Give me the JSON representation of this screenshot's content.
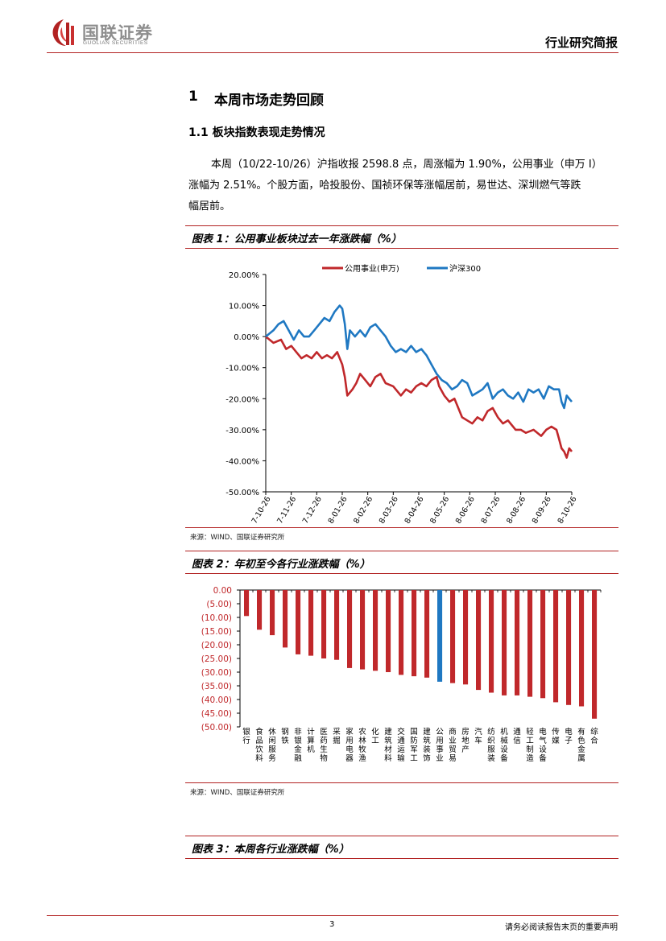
{
  "header": {
    "brand_cn": "国联证券",
    "brand_en": "GUOLIAN SECURITIES",
    "doc_type": "行业研究简报"
  },
  "section": {
    "number": "1",
    "title": "本周市场走势回顾",
    "subsection": "1.1 板块指数表现走势情况",
    "paragraph_line1": "本周（10/22-10/26）沪指收报 2598.8 点，周涨幅为 1.90%，公用事业（申万 I）",
    "paragraph_line2": "涨幅为 2.51%。个股方面，哈投股份、国祯环保等涨幅居前，易世达、深圳燃气等跌",
    "paragraph_line3": "幅居前。"
  },
  "figure1": {
    "title": "图表 1：公用事业板块过去一年涨跌幅（%）",
    "source": "来源：WIND、国联证券研究所"
  },
  "figure2": {
    "title": "图表 2：年初至今各行业涨跌幅（%）",
    "source": "来源：WIND、国联证券研究所"
  },
  "figure3": {
    "title": "图表 3：本周各行业涨跌幅（%）"
  },
  "footer": {
    "page": "3",
    "disclaimer": "请务必阅读报告末页的重要声明"
  },
  "colors": {
    "red": "#c0282b",
    "blue": "#1f78c2",
    "brand_red": "#b22222"
  },
  "chart_data": [
    {
      "type": "line",
      "title": "公用事业板块过去一年涨跌幅（%）",
      "x_tick_labels": [
        "2017-10-26",
        "2017-11-26",
        "2017-12-26",
        "2018-01-26",
        "2018-02-26",
        "2018-03-26",
        "2018-04-26",
        "2018-05-26",
        "2018-06-26",
        "2018-07-26",
        "2018-08-26",
        "2018-09-26",
        "2018-10-26"
      ],
      "y_tick_labels": [
        "20.00%",
        "10.00%",
        "0.00%",
        "-10.00%",
        "-20.00%",
        "-30.00%",
        "-40.00%",
        "-50.00%"
      ],
      "ylim": [
        -50,
        20
      ],
      "x_months": [
        0,
        12
      ],
      "legend_position": "top",
      "series": [
        {
          "name": "公用事业(申万)",
          "color": "#c0282b",
          "x": [
            0,
            0.3,
            0.6,
            0.8,
            1.0,
            1.2,
            1.4,
            1.6,
            1.8,
            2.0,
            2.2,
            2.4,
            2.6,
            2.8,
            3.0,
            3.1,
            3.2,
            3.4,
            3.55,
            3.7,
            3.9,
            4.1,
            4.3,
            4.5,
            4.7,
            5.0,
            5.3,
            5.5,
            5.7,
            5.9,
            6.1,
            6.3,
            6.5,
            6.7,
            6.8,
            7.0,
            7.2,
            7.4,
            7.5,
            7.7,
            7.9,
            8.1,
            8.3,
            8.5,
            8.7,
            8.9,
            9.1,
            9.3,
            9.5,
            9.8,
            10.0,
            10.2,
            10.5,
            10.8,
            11.0,
            11.2,
            11.4,
            11.5,
            11.6,
            11.7,
            11.8,
            11.9,
            12.0
          ],
          "values": [
            0,
            -2,
            -1,
            -4,
            -3,
            -5,
            -7,
            -6,
            -7,
            -5,
            -7,
            -6,
            -7,
            -5,
            -9,
            -13,
            -19,
            -17,
            -15,
            -12,
            -14,
            -16,
            -13,
            -12,
            -15,
            -16,
            -19,
            -17,
            -18,
            -16,
            -15,
            -16,
            -14,
            -13,
            -16,
            -19,
            -21,
            -20,
            -22,
            -26,
            -27,
            -28,
            -26,
            -27,
            -24,
            -23,
            -26,
            -28,
            -27,
            -30,
            -30,
            -31,
            -30,
            -32,
            -30,
            -29,
            -30,
            -33,
            -36,
            -37,
            -39,
            -36,
            -37
          ]
        },
        {
          "name": "沪深300",
          "color": "#1f78c2",
          "x": [
            0,
            0.3,
            0.5,
            0.7,
            0.9,
            1.1,
            1.3,
            1.5,
            1.7,
            1.9,
            2.1,
            2.3,
            2.5,
            2.7,
            2.9,
            3.0,
            3.1,
            3.2,
            3.3,
            3.5,
            3.7,
            3.9,
            4.1,
            4.3,
            4.5,
            4.7,
            4.9,
            5.1,
            5.3,
            5.5,
            5.7,
            5.9,
            6.1,
            6.2,
            6.3,
            6.5,
            6.7,
            6.9,
            7.1,
            7.3,
            7.5,
            7.7,
            7.9,
            8.1,
            8.3,
            8.5,
            8.7,
            8.9,
            9.1,
            9.3,
            9.5,
            9.7,
            9.9,
            10.1,
            10.3,
            10.5,
            10.7,
            10.9,
            11.1,
            11.3,
            11.5,
            11.6,
            11.7,
            11.8,
            11.9,
            12.0
          ],
          "values": [
            0,
            2,
            4,
            5,
            2,
            -1,
            2,
            0,
            0,
            2,
            4,
            6,
            5,
            8,
            10,
            9,
            4,
            -4,
            2,
            0,
            2,
            0,
            3,
            4,
            2,
            0,
            -3,
            -5,
            -4,
            -5,
            -3,
            -5,
            -4,
            -5,
            -6,
            -9,
            -12,
            -14,
            -15,
            -17,
            -16,
            -14,
            -15,
            -19,
            -18,
            -17,
            -15,
            -20,
            -18,
            -17,
            -19,
            -20,
            -18,
            -21,
            -17,
            -18,
            -17,
            -20,
            -16,
            -17,
            -17,
            -21,
            -23,
            -19,
            -20,
            -21
          ]
        }
      ]
    },
    {
      "type": "bar",
      "title": "年初至今各行业涨跌幅（%）",
      "y_tick_labels": [
        "0.00",
        "(5.00)",
        "(10.00)",
        "(15.00)",
        "(20.00)",
        "(25.00)",
        "(30.00)",
        "(35.00)",
        "(40.00)",
        "(45.00)",
        "(50.00)"
      ],
      "ylim": [
        -50,
        0
      ],
      "categories": [
        "银行",
        "食品饮料",
        "休闲服务",
        "钢铁",
        "非银金融",
        "计算机",
        "医药生物",
        "采掘",
        "家用电器",
        "农林牧渔",
        "化工",
        "建筑材料",
        "交通运输",
        "国防军工",
        "建筑装饰",
        "公用事业",
        "商业贸易",
        "房地产",
        "汽车",
        "纺织服装",
        "机械设备",
        "通信",
        "轻工制造",
        "电气设备",
        "传媒",
        "电子",
        "有色金属",
        "综合"
      ],
      "values": [
        -9.5,
        -14.5,
        -16.5,
        -21,
        -23.5,
        -24,
        -25,
        -25.5,
        -28.5,
        -29,
        -29.5,
        -30,
        -31,
        -31.5,
        -32,
        -33.5,
        -34,
        -34.5,
        -36.5,
        -37.5,
        -38.5,
        -38.5,
        -39,
        -39.5,
        -41,
        -42,
        -42.5,
        -47
      ],
      "highlight_category": "公用事业",
      "highlight_color": "#1f78c2",
      "bar_color": "#c0282b"
    }
  ]
}
